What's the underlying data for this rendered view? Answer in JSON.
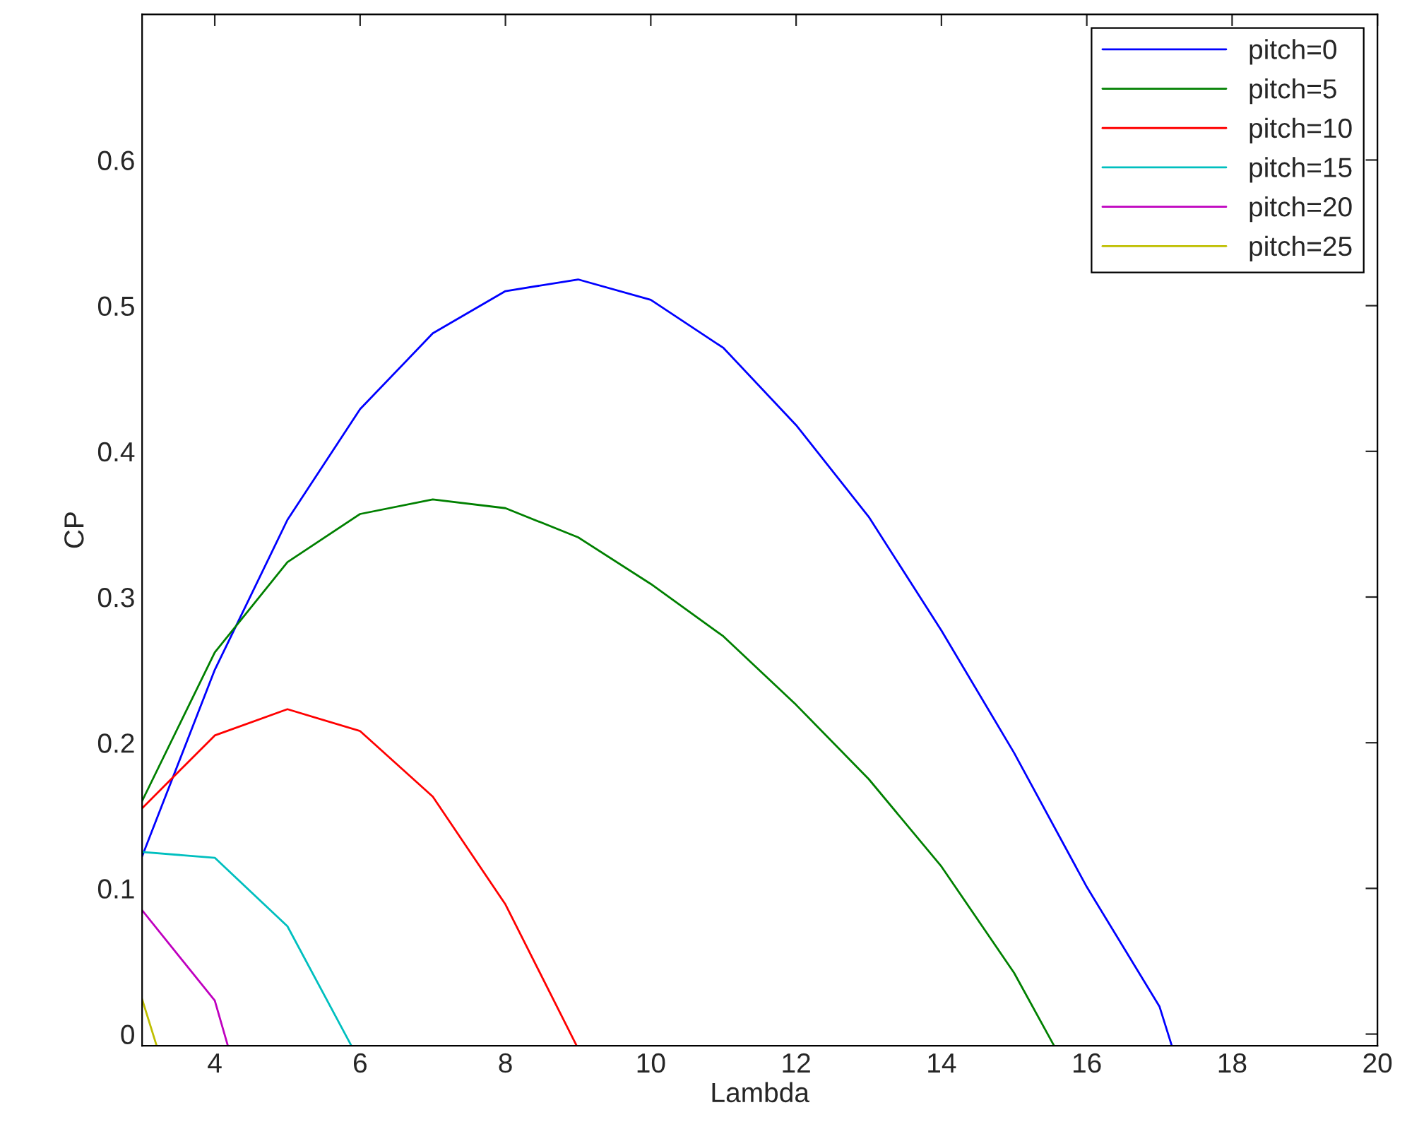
{
  "chart_data": {
    "type": "line",
    "xlabel": "Lambda",
    "ylabel": "CP",
    "xlim": [
      3,
      20
    ],
    "ylim": [
      -0.008,
      0.7
    ],
    "xticks": [
      4,
      6,
      8,
      10,
      12,
      14,
      16,
      18,
      20
    ],
    "yticks": [
      0,
      0.1,
      0.2,
      0.3,
      0.4,
      0.5,
      0.6
    ],
    "grid": false,
    "legend": "top right",
    "line_style": "solid",
    "marker": "none",
    "series": [
      {
        "name": "pitch=0",
        "color": "#0000ff",
        "x": [
          3,
          4,
          5,
          6,
          7,
          8,
          9,
          10,
          11,
          12,
          13,
          14,
          15,
          16,
          17,
          17.17
        ],
        "values": [
          0.122,
          0.25,
          0.353,
          0.429,
          0.481,
          0.51,
          0.518,
          0.504,
          0.471,
          0.418,
          0.355,
          0.277,
          0.193,
          0.101,
          0.019,
          -0.008
        ]
      },
      {
        "name": "pitch=5",
        "color": "#008000",
        "x": [
          3,
          4,
          5,
          6,
          7,
          8,
          9,
          10,
          11,
          12,
          13,
          14,
          15,
          15.55
        ],
        "values": [
          0.16,
          0.262,
          0.324,
          0.357,
          0.367,
          0.361,
          0.341,
          0.309,
          0.273,
          0.226,
          0.175,
          0.115,
          0.042,
          -0.008
        ]
      },
      {
        "name": "pitch=10",
        "color": "#ff0000",
        "x": [
          3,
          4,
          5,
          6,
          7,
          8,
          8.98
        ],
        "values": [
          0.155,
          0.205,
          0.223,
          0.208,
          0.163,
          0.089,
          -0.008
        ]
      },
      {
        "name": "pitch=15",
        "color": "#00bfbf",
        "x": [
          3,
          4,
          5,
          5.88
        ],
        "values": [
          0.125,
          0.121,
          0.074,
          -0.008
        ]
      },
      {
        "name": "pitch=20",
        "color": "#bf00bf",
        "x": [
          3,
          4,
          4.18
        ],
        "values": [
          0.085,
          0.023,
          -0.008
        ]
      },
      {
        "name": "pitch=25",
        "color": "#bfbf00",
        "x": [
          3,
          3.2
        ],
        "values": [
          0.024,
          -0.008
        ]
      }
    ]
  }
}
